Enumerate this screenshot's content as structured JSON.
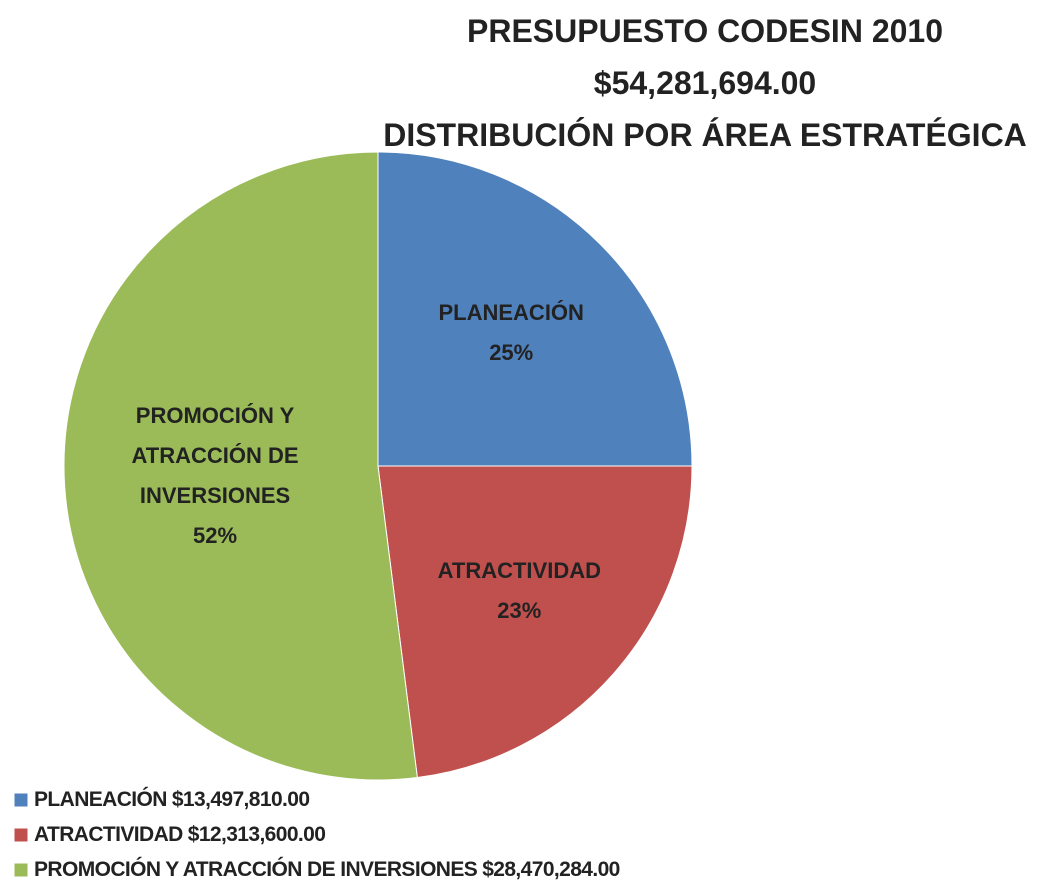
{
  "chart_data": {
    "type": "pie",
    "title": [
      "PRESUPUESTO CODESIN 2010",
      "$54,281,694.00",
      "DISTRIBUCIÓN POR ÁREA ESTRATÉGICA"
    ],
    "categories": [
      "PLANEACIÓN",
      "ATRACTIVIDAD",
      "PROMOCIÓN Y ATRACCIÓN DE INVERSIONES"
    ],
    "values": [
      25,
      23,
      52
    ],
    "value_labels": [
      "25%",
      "23%",
      "52%"
    ],
    "colors": [
      "#4f81bd",
      "#c0504d",
      "#9bbb59"
    ],
    "amounts": [
      13497810,
      12313600,
      28470284
    ],
    "amount_labels": [
      "$13,497,810.00",
      "$12,313,600.00",
      "$28,470,284.00"
    ],
    "legend": "bottom-left"
  }
}
